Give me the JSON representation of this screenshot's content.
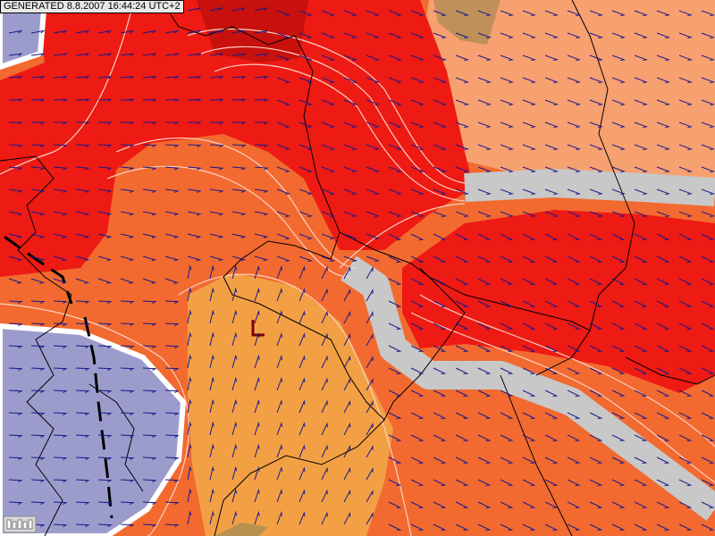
{
  "header": {
    "label": "GENERATED 8.8.2007 16:44:24 UTC+2"
  }
}
